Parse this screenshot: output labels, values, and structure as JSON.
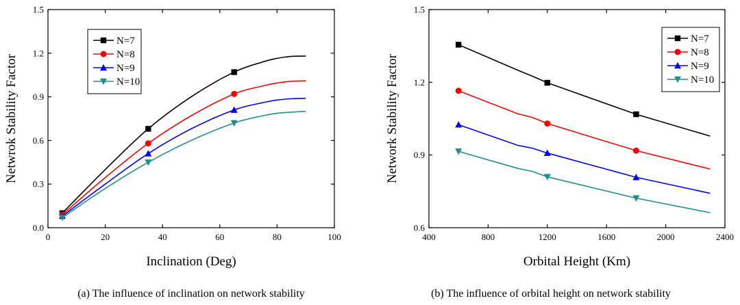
{
  "chart_data": [
    {
      "type": "line",
      "xlabel": "Inclination (Deg)",
      "ylabel": "Netwrok Stability Factor",
      "caption": "(a) The influence of inclination on network stability",
      "xlim": [
        0,
        100
      ],
      "ylim": [
        0.0,
        1.5
      ],
      "xticks": [
        0,
        20,
        40,
        60,
        80,
        100
      ],
      "yticks": [
        0.0,
        0.3,
        0.6,
        0.9,
        1.2,
        1.5
      ],
      "ytick_labels": [
        "0.0",
        "0.3",
        "0.6",
        "0.9",
        "1.2",
        "1.5"
      ],
      "legend_position": "top-left",
      "grid": false,
      "series": [
        {
          "name": "N=7",
          "color": "#000000",
          "marker": "square",
          "x": [
            5,
            20,
            35,
            50,
            65,
            75,
            80,
            85,
            90
          ],
          "y": [
            0.1,
            0.4,
            0.68,
            0.9,
            1.07,
            1.14,
            1.165,
            1.178,
            1.18
          ],
          "marker_x": [
            5,
            35,
            65
          ],
          "marker_y": [
            0.1,
            0.68,
            1.07
          ]
        },
        {
          "name": "N=8",
          "color": "#ff0000",
          "marker": "circle",
          "x": [
            5,
            20,
            35,
            50,
            65,
            75,
            80,
            85,
            90
          ],
          "y": [
            0.09,
            0.345,
            0.58,
            0.77,
            0.92,
            0.975,
            0.995,
            1.007,
            1.01
          ],
          "marker_x": [
            5,
            35,
            65
          ],
          "marker_y": [
            0.09,
            0.58,
            0.92
          ]
        },
        {
          "name": "N=9",
          "color": "#0000ff",
          "marker": "triangle-up",
          "x": [
            5,
            20,
            35,
            50,
            65,
            75,
            80,
            85,
            90
          ],
          "y": [
            0.08,
            0.3,
            0.51,
            0.68,
            0.81,
            0.86,
            0.878,
            0.887,
            0.89
          ],
          "marker_x": [
            5,
            35,
            65
          ],
          "marker_y": [
            0.08,
            0.51,
            0.81
          ]
        },
        {
          "name": "N=10",
          "color": "#1f8f8a",
          "marker": "triangle-down",
          "x": [
            5,
            20,
            35,
            50,
            65,
            75,
            80,
            85,
            90
          ],
          "y": [
            0.07,
            0.27,
            0.45,
            0.6,
            0.72,
            0.77,
            0.787,
            0.795,
            0.8
          ],
          "marker_x": [
            5,
            35,
            65
          ],
          "marker_y": [
            0.07,
            0.45,
            0.72
          ]
        }
      ]
    },
    {
      "type": "line",
      "xlabel": "Orbital Height (Km)",
      "ylabel": "Network Stability Factor",
      "caption": "(b) The influence of orbital height on network stability",
      "xlim": [
        400,
        2400
      ],
      "ylim": [
        0.6,
        1.5
      ],
      "xticks": [
        400,
        800,
        1200,
        1600,
        2000,
        2400
      ],
      "yticks": [
        0.6,
        0.9,
        1.2,
        1.5
      ],
      "ytick_labels": [
        "0.6",
        "0.9",
        "1.2",
        "1.5"
      ],
      "legend_position": "top-right",
      "grid": false,
      "series": [
        {
          "name": "N=7",
          "color": "#000000",
          "marker": "square",
          "x": [
            600,
            1000,
            1100,
            1200,
            1800,
            2300
          ],
          "y": [
            1.355,
            1.25,
            1.225,
            1.198,
            1.068,
            0.978
          ],
          "marker_x": [
            600,
            1200,
            1800
          ],
          "marker_y": [
            1.355,
            1.198,
            1.068
          ]
        },
        {
          "name": "N=8",
          "color": "#ff0000",
          "marker": "circle",
          "x": [
            600,
            1000,
            1100,
            1200,
            1800,
            2300
          ],
          "y": [
            1.165,
            1.07,
            1.055,
            1.03,
            0.918,
            0.842
          ],
          "marker_x": [
            600,
            1200,
            1800
          ],
          "marker_y": [
            1.165,
            1.03,
            0.918
          ]
        },
        {
          "name": "N=9",
          "color": "#0000ff",
          "marker": "triangle-up",
          "x": [
            600,
            1000,
            1100,
            1200,
            1800,
            2300
          ],
          "y": [
            1.025,
            0.94,
            0.928,
            0.908,
            0.808,
            0.742
          ],
          "marker_x": [
            600,
            1200,
            1800
          ],
          "marker_y": [
            1.025,
            0.908,
            0.808
          ]
        },
        {
          "name": "N=10",
          "color": "#1f8f8a",
          "marker": "triangle-down",
          "x": [
            600,
            1000,
            1100,
            1200,
            1800,
            2300
          ],
          "y": [
            0.915,
            0.845,
            0.832,
            0.81,
            0.722,
            0.662
          ],
          "marker_x": [
            600,
            1200,
            1800
          ],
          "marker_y": [
            0.915,
            0.81,
            0.722
          ]
        }
      ]
    }
  ]
}
